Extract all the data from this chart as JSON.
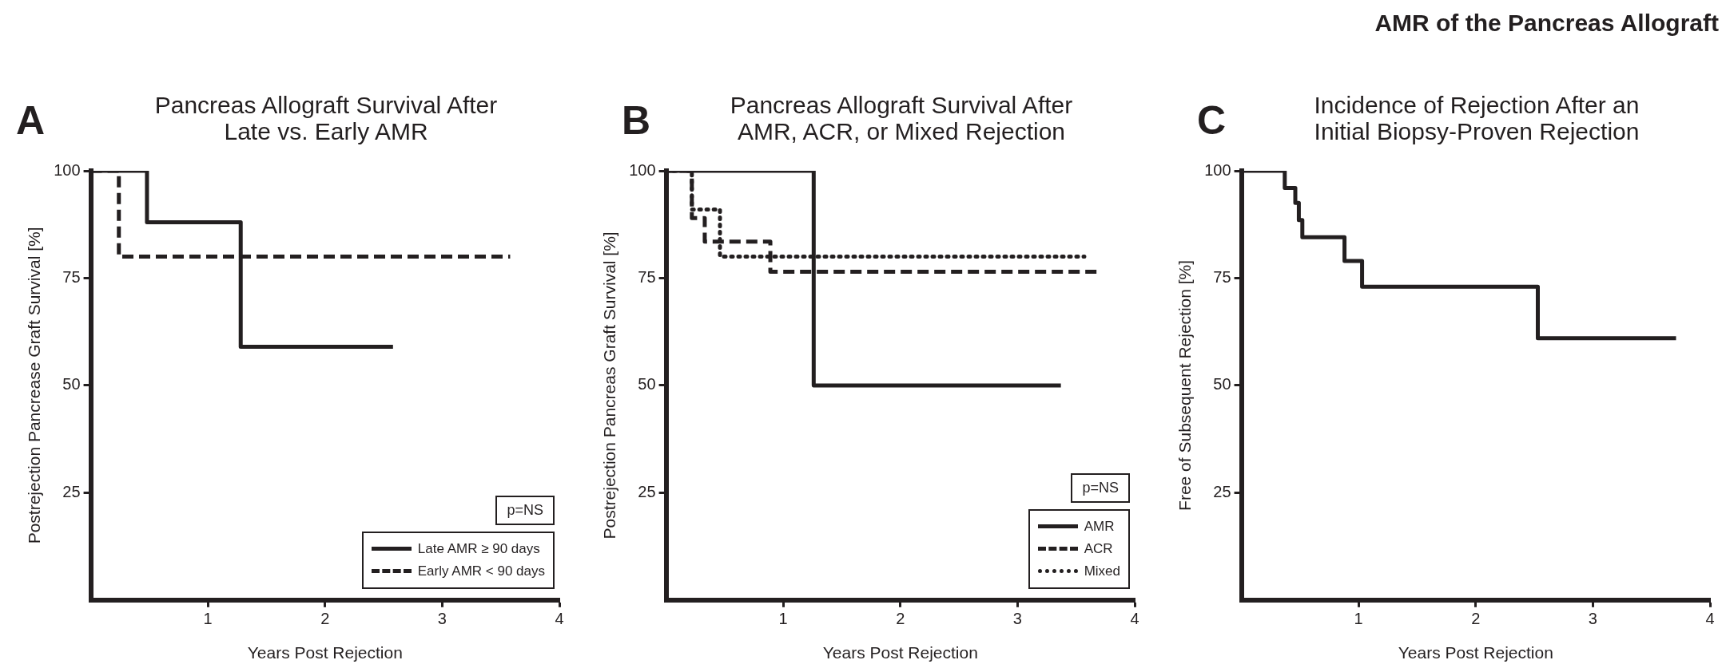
{
  "chart_data": [
    {
      "type": "step",
      "title": "Pancreas Allograft Survival After\nLate vs. Early AMR",
      "xlabel": "Years Post Rejection",
      "ylabel": "Postrejection Pancrease Graft Survival [%]",
      "xlim": [
        0,
        4
      ],
      "xticks": [
        1,
        2,
        3,
        4
      ],
      "ylim": [
        0,
        100
      ],
      "yticks": [
        25,
        50,
        75,
        100
      ],
      "legend": "bottom right",
      "annotations": [
        "A",
        "p=NS"
      ],
      "series": [
        {
          "name": "Late AMR ≥ 90 days",
          "color": "#231f20",
          "line_style": "solid",
          "x": [
            0,
            0.48,
            1.28,
            2.58
          ],
          "values": [
            100,
            88,
            59,
            59
          ]
        },
        {
          "name": "Early AMR < 90 days",
          "color": "#231f20",
          "line_style": "dashed",
          "x": [
            0,
            0.24,
            3.58
          ],
          "values": [
            100,
            80,
            80
          ]
        }
      ]
    },
    {
      "type": "step",
      "title": "Pancreas Allograft Survival After\nAMR, ACR, or Mixed Rejection",
      "xlabel": "Years Post Rejection",
      "ylabel": "Postrejection Pancreas Graft Survival [%]",
      "xlim": [
        0,
        4
      ],
      "xticks": [
        1,
        2,
        3,
        4
      ],
      "ylim": [
        0,
        100
      ],
      "yticks": [
        25,
        50,
        75,
        100
      ],
      "legend": "bottom right",
      "annotations": [
        "B",
        "p=NS"
      ],
      "series": [
        {
          "name": "AMR",
          "color": "#231f20",
          "line_style": "solid",
          "x": [
            0,
            1.26,
            3.37
          ],
          "values": [
            100,
            50,
            50
          ]
        },
        {
          "name": "ACR",
          "color": "#231f20",
          "line_style": "dashed",
          "x": [
            0,
            0.22,
            0.33,
            0.89,
            3.7
          ],
          "values": [
            100,
            89,
            83.5,
            76.5,
            76.5
          ]
        },
        {
          "name": "Mixed",
          "color": "#231f20",
          "line_style": "dotted",
          "x": [
            0,
            0.22,
            0.46,
            3.57
          ],
          "values": [
            100,
            91,
            80,
            80
          ]
        }
      ]
    },
    {
      "type": "step",
      "title": "Incidence of Rejection After an\nInitial Biopsy-Proven Rejection",
      "xlabel": "Years Post Rejection",
      "ylabel": "Free of Subsequent Rejection [%]",
      "xlim": [
        0,
        4
      ],
      "xticks": [
        1,
        2,
        3,
        4
      ],
      "ylim": [
        0,
        100
      ],
      "yticks": [
        25,
        50,
        75,
        100
      ],
      "annotations": [
        "C",
        "AMR of the Pancreas Allograft"
      ],
      "series": [
        {
          "color": "#231f20",
          "line_style": "solid",
          "x": [
            0,
            0.37,
            0.46,
            0.49,
            0.52,
            0.88,
            1.03,
            2.53,
            3.71
          ],
          "values": [
            100,
            96,
            92.5,
            88.5,
            84.5,
            79,
            73,
            61,
            61
          ]
        }
      ]
    }
  ]
}
